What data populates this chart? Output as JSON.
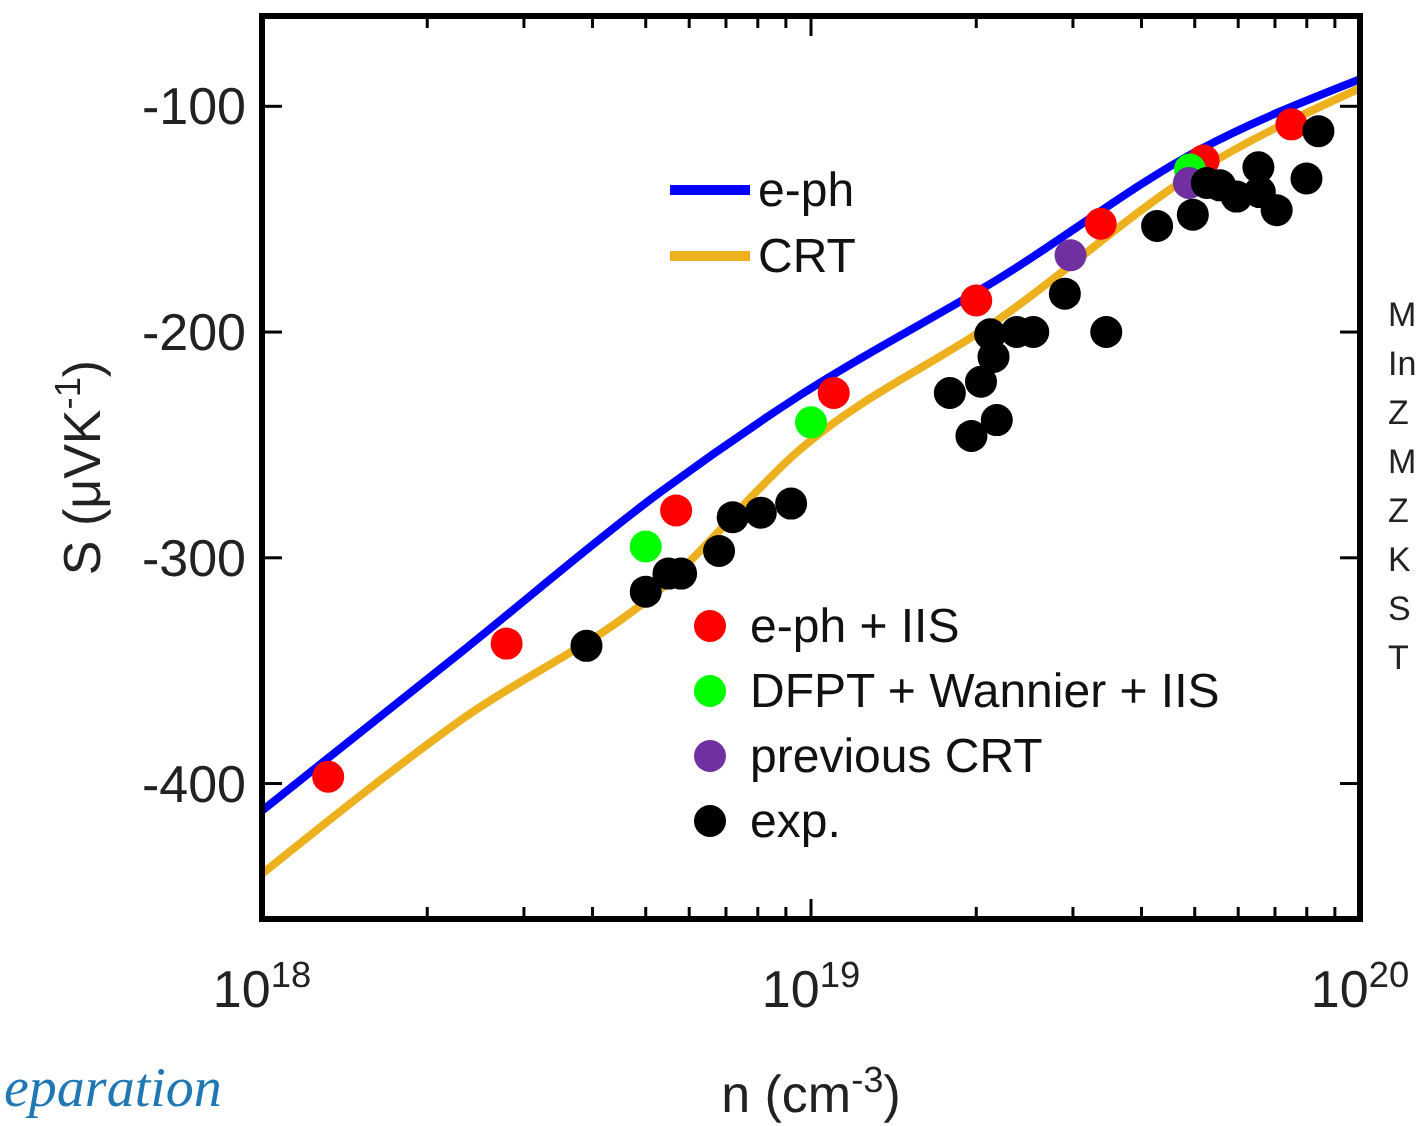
{
  "chart_data": {
    "type": "scatter",
    "xlabel": "n (cm$^{-3}$)",
    "ylabel": "S (μVK$^{-1}$)",
    "log": "x",
    "xlim": [
      1e+18,
      1e+20
    ],
    "ylim": [
      -460,
      -60
    ],
    "xticks": [
      {
        "value": 1e+18,
        "label": "10$^{18}$"
      },
      {
        "value": 2e+18,
        "label": null
      },
      {
        "value": 3e+18,
        "label": null
      },
      {
        "value": 4e+18,
        "label": null
      },
      {
        "value": 5e+18,
        "label": null
      },
      {
        "value": 6e+18,
        "label": null
      },
      {
        "value": 7e+18,
        "label": null
      },
      {
        "value": 8e+18,
        "label": null
      },
      {
        "value": 9e+18,
        "label": null
      },
      {
        "value": 1e+19,
        "label": "10$^{19}$"
      },
      {
        "value": 2e+19,
        "label": null
      },
      {
        "value": 3e+19,
        "label": null
      },
      {
        "value": 4e+19,
        "label": null
      },
      {
        "value": 5e+19,
        "label": null
      },
      {
        "value": 6e+19,
        "label": null
      },
      {
        "value": 7e+19,
        "label": null
      },
      {
        "value": 8e+19,
        "label": null
      },
      {
        "value": 9e+19,
        "label": null
      },
      {
        "value": 1e+20,
        "label": "10$^{20}$"
      }
    ],
    "yticks": [
      -100,
      -200,
      -300,
      -400
    ],
    "grid": false,
    "legend": "right",
    "marker": "circle",
    "series": [
      {
        "name": "e-ph",
        "type": "line",
        "marker": "none",
        "color": "#0000ff",
        "x": [
          1e+18,
          2.3e+18,
          5.31e+18,
          9.55e+18,
          2.21e+19,
          5.12e+19,
          1e+20
        ],
        "values": [
          -412,
          -342,
          -271,
          -228,
          -176,
          -119,
          -88
        ]
      },
      {
        "name": "CRT",
        "type": "line",
        "marker": "none",
        "color": "#edb120",
        "x": [
          1e+18,
          2.3e+18,
          5.31e+18,
          9.55e+18,
          2.21e+19,
          5.12e+19,
          1e+20
        ],
        "values": [
          -440,
          -372,
          -314,
          -252,
          -194,
          -128,
          -92
        ]
      },
      {
        "name": "e-ph + IIS",
        "color": "#ff0000",
        "x": [
          1.32e+18,
          2.79e+18,
          5.68e+18,
          1.1e+19,
          2e+19,
          3.37e+19,
          5.19e+19,
          7.5e+19
        ],
        "values": [
          -397,
          -338,
          -279,
          -227,
          -186,
          -152,
          -124,
          -108
        ]
      },
      {
        "name": "DFPT + Wannier + IIS",
        "color": "#00ff00",
        "x": [
          5e+18,
          1e+19,
          4.9e+19
        ],
        "values": [
          -295,
          -240,
          -128
        ]
      },
      {
        "name": "previous CRT",
        "color": "#7030a0",
        "x": [
          2.97e+19,
          4.88e+19
        ],
        "values": [
          -166,
          -134
        ]
      },
      {
        "name": "exp.",
        "color": "#000000",
        "x": [
          3.9e+18,
          5e+18,
          5.5e+18,
          5.8e+18,
          6.8e+18,
          7.2e+18,
          8.1e+18,
          9.2e+18,
          1.79e+19,
          1.96e+19,
          2.18e+19,
          2.04e+19,
          2.15e+19,
          2.12e+19,
          2.37e+19,
          2.54e+19,
          2.9e+19,
          3.45e+19,
          4.27e+19,
          4.96e+19,
          5.26e+19,
          5.56e+19,
          5.96e+19,
          6.53e+19,
          6.57e+19,
          7.05e+19,
          7.99e+19,
          8.4e+19
        ],
        "values": [
          -339,
          -315,
          -307,
          -307,
          -297,
          -282,
          -280,
          -276,
          -227,
          -246,
          -239,
          -222,
          -211,
          -201,
          -200,
          -200,
          -183,
          -200,
          -153,
          -148,
          -134,
          -135,
          -140,
          -127,
          -138,
          -146,
          -132,
          -111
        ]
      }
    ],
    "annotations": [
      "eparation",
      "M",
      "In",
      "Z",
      "M",
      "Z",
      "K",
      "S",
      "T"
    ]
  }
}
